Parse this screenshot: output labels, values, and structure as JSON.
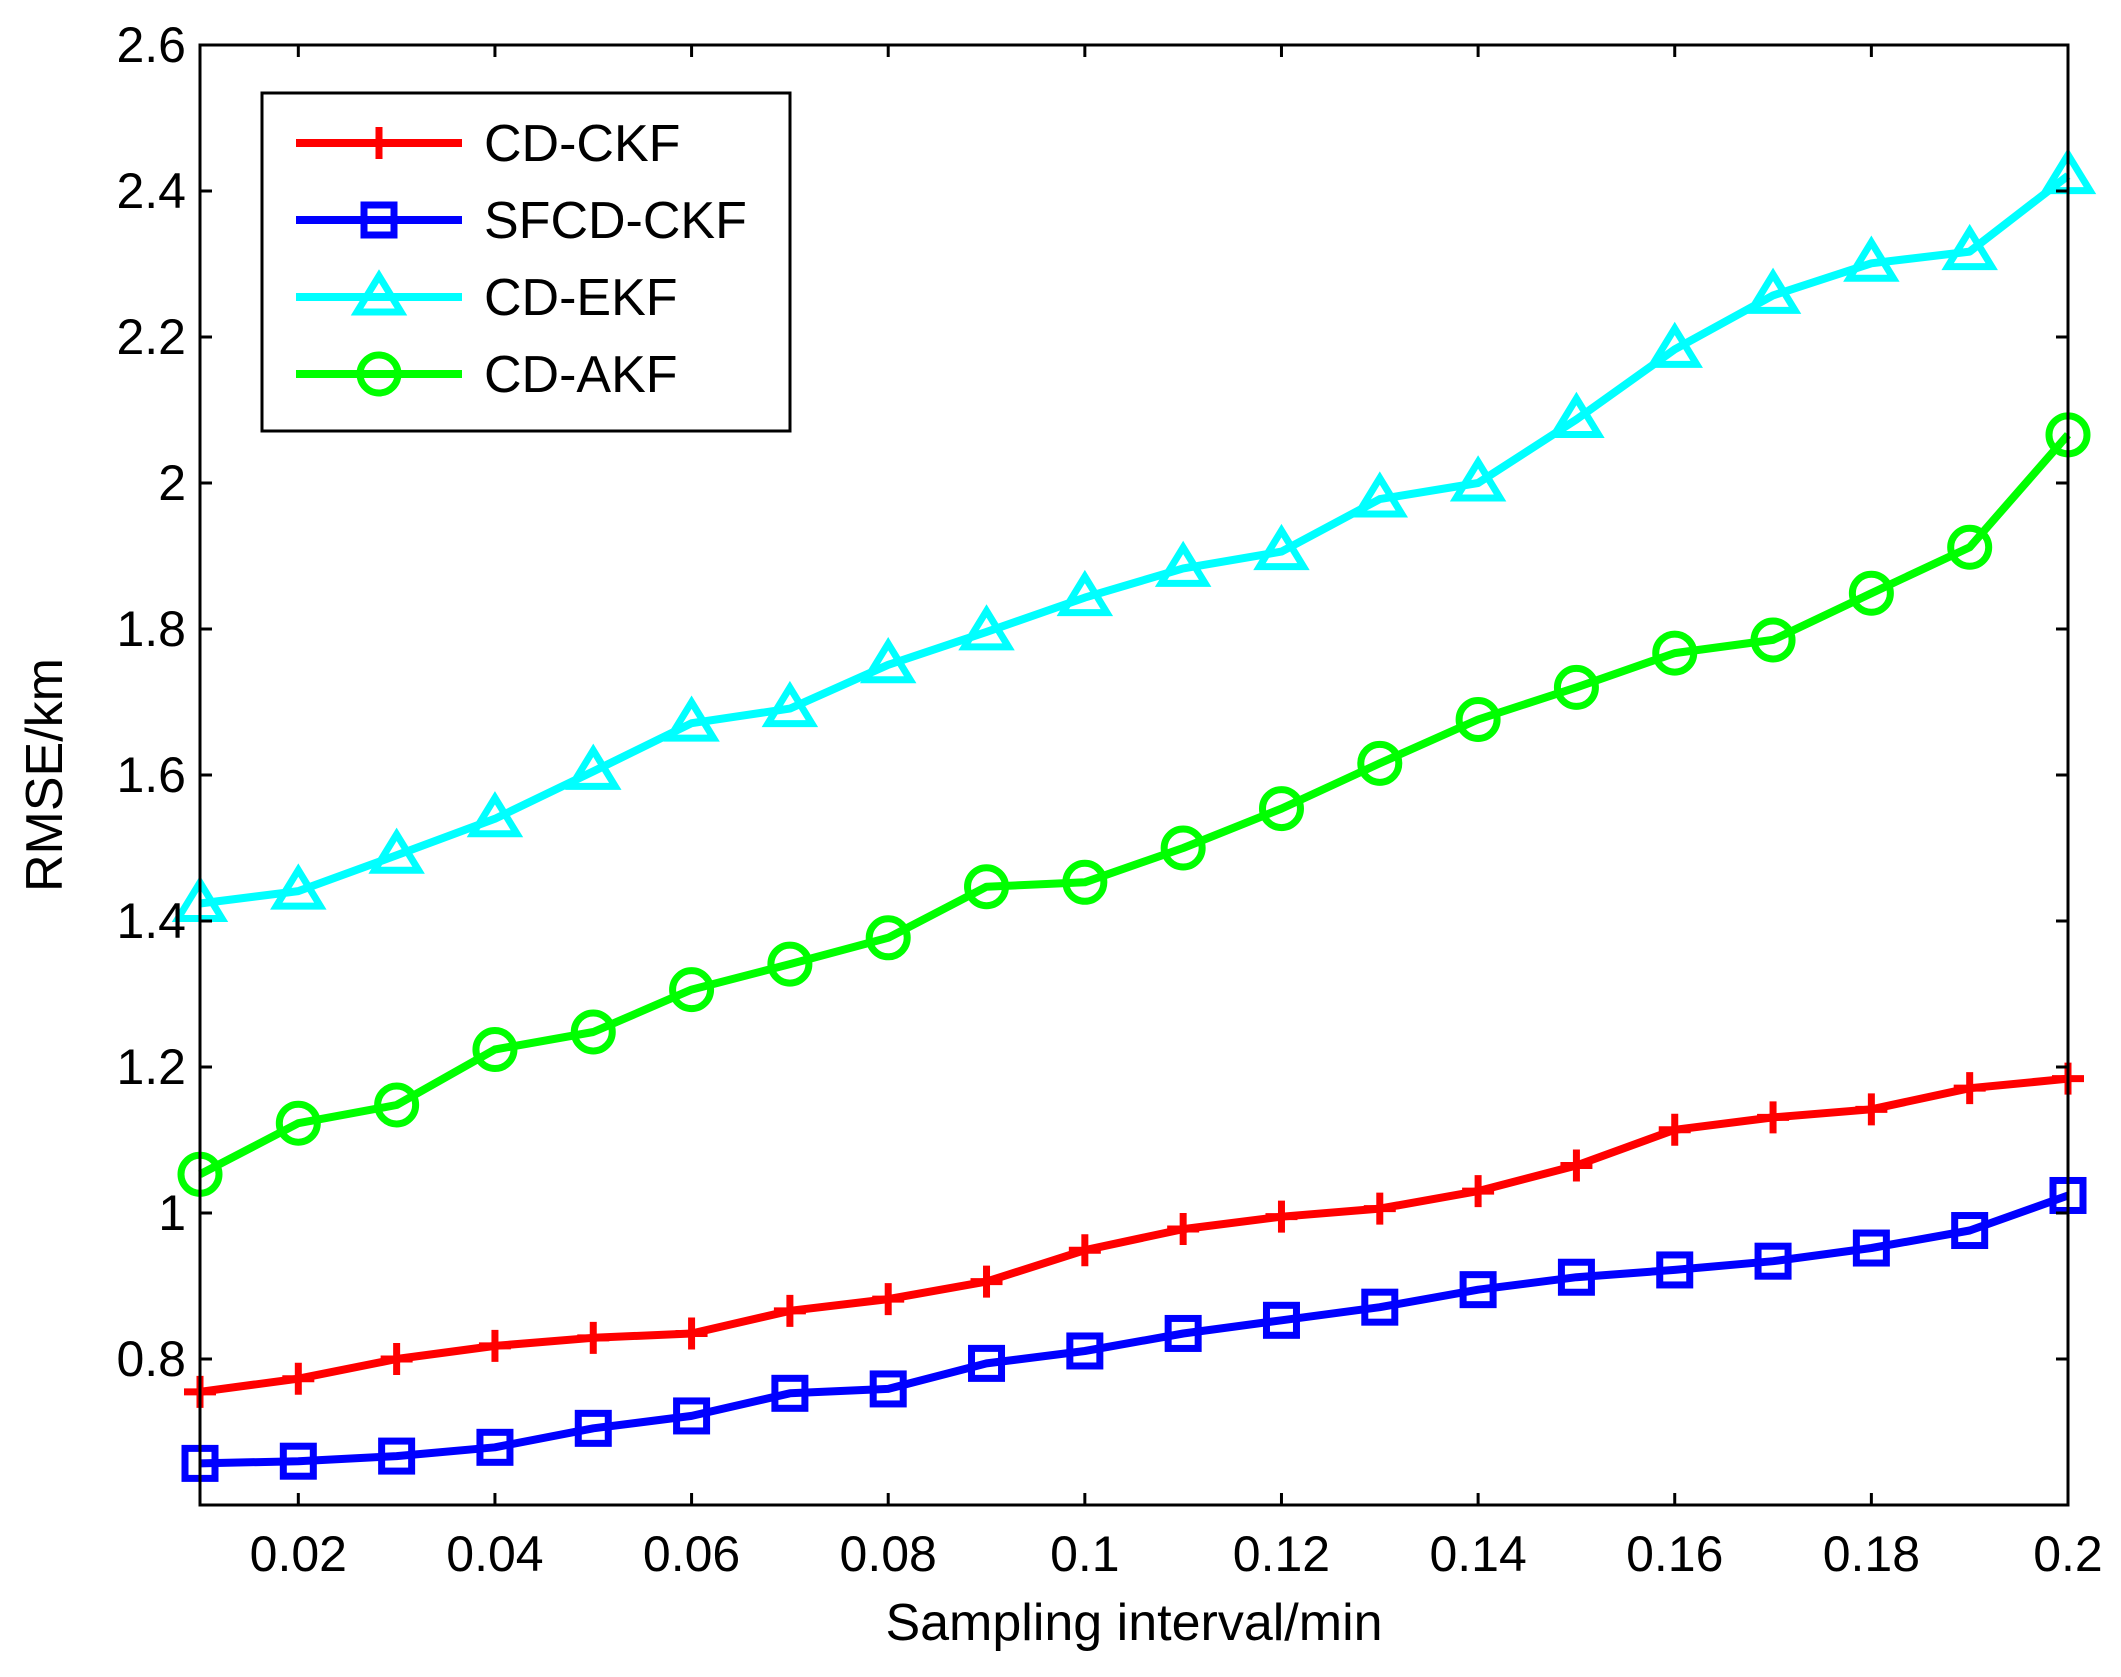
{
  "chart_data": {
    "type": "line",
    "title": "",
    "xlabel": "Sampling interval/min",
    "ylabel": "RMSE/km",
    "xlim": [
      0.01,
      0.2
    ],
    "ylim": [
      0.6,
      2.6
    ],
    "grid": false,
    "legend_position": "top-left",
    "x": [
      0.01,
      0.02,
      0.03,
      0.04,
      0.05,
      0.06,
      0.07,
      0.08,
      0.09,
      0.1,
      0.11,
      0.12,
      0.13,
      0.14,
      0.15,
      0.16,
      0.17,
      0.18,
      0.19,
      0.2
    ],
    "x_ticks": [
      {
        "value": 0.02,
        "label": "0.02"
      },
      {
        "value": 0.04,
        "label": "0.04"
      },
      {
        "value": 0.06,
        "label": "0.06"
      },
      {
        "value": 0.08,
        "label": "0.08"
      },
      {
        "value": 0.1,
        "label": "0.1"
      },
      {
        "value": 0.12,
        "label": "0.12"
      },
      {
        "value": 0.14,
        "label": "0.14"
      },
      {
        "value": 0.16,
        "label": "0.16"
      },
      {
        "value": 0.18,
        "label": "0.18"
      },
      {
        "value": 0.2,
        "label": "0.2"
      }
    ],
    "y_ticks": [
      {
        "value": 0.8,
        "label": "0.8"
      },
      {
        "value": 1.0,
        "label": "1"
      },
      {
        "value": 1.2,
        "label": "1.2"
      },
      {
        "value": 1.4,
        "label": "1.4"
      },
      {
        "value": 1.6,
        "label": "1.6"
      },
      {
        "value": 1.8,
        "label": "1.8"
      },
      {
        "value": 2.0,
        "label": "2"
      },
      {
        "value": 2.2,
        "label": "2.2"
      },
      {
        "value": 2.4,
        "label": "2.4"
      },
      {
        "value": 2.6,
        "label": "2.6"
      }
    ],
    "series": [
      {
        "name": "CD-CKF",
        "color": "#ff0000",
        "marker": "plus",
        "values": [
          0.755,
          0.773,
          0.8,
          0.818,
          0.829,
          0.835,
          0.866,
          0.882,
          0.906,
          0.949,
          0.978,
          0.995,
          1.006,
          1.03,
          1.065,
          1.114,
          1.131,
          1.142,
          1.171,
          1.184
        ]
      },
      {
        "name": "SFCD-CKF",
        "color": "#0000ff",
        "marker": "square",
        "values": [
          0.657,
          0.66,
          0.667,
          0.679,
          0.705,
          0.722,
          0.753,
          0.759,
          0.794,
          0.811,
          0.835,
          0.853,
          0.871,
          0.895,
          0.912,
          0.922,
          0.934,
          0.952,
          0.976,
          1.024
        ]
      },
      {
        "name": "CD-EKF",
        "color": "#00ffff",
        "marker": "triangle",
        "values": [
          1.424,
          1.441,
          1.49,
          1.54,
          1.605,
          1.671,
          1.691,
          1.751,
          1.796,
          1.843,
          1.883,
          1.906,
          1.978,
          2.0,
          2.087,
          2.183,
          2.257,
          2.301,
          2.317,
          2.421
        ]
      },
      {
        "name": "CD-AKF",
        "color": "#00ff00",
        "marker": "circle",
        "values": [
          1.053,
          1.123,
          1.148,
          1.224,
          1.248,
          1.306,
          1.341,
          1.377,
          1.447,
          1.453,
          1.5,
          1.554,
          1.616,
          1.676,
          1.72,
          1.767,
          1.785,
          1.849,
          1.912,
          2.066
        ]
      }
    ]
  }
}
